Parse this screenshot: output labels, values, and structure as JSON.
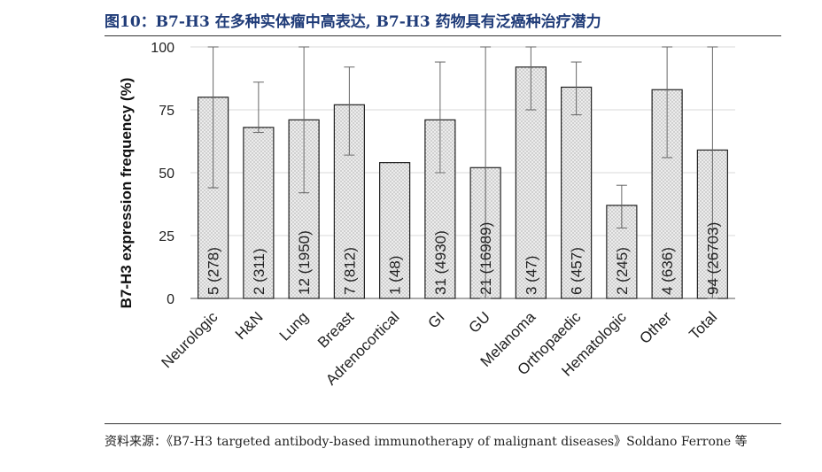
{
  "figure": {
    "title": "图10：B7-H3 在多种实体瘤中高表达, B7-H3 药物具有泛癌种治疗潜力",
    "source": "资料来源：《B7-H3 targeted antibody-based immunotherapy of malignant diseases》Soldano Ferrone 等"
  },
  "colors": {
    "bar_fill": "#ececec",
    "bar_stroke": "#222222",
    "grid": "#d9d9d9",
    "title": "#1f3b78"
  },
  "chart_data": {
    "type": "bar",
    "ylabel": "B7-H3 expression frequency (%)",
    "ylim": [
      0,
      100
    ],
    "yticks": [
      "0",
      "25",
      "50",
      "75",
      "100"
    ],
    "grid": true,
    "categories": [
      "Neurologic",
      "H&N",
      "Lung",
      "Breast",
      "Adrenocortical",
      "GI",
      "GU",
      "Melanoma",
      "Orthopaedic",
      "Hematologic",
      "Other",
      "Total"
    ],
    "values": [
      80,
      68,
      71,
      77,
      54,
      71,
      52,
      92,
      84,
      37,
      83,
      59
    ],
    "error_low": [
      44,
      66,
      42,
      57,
      54,
      50,
      0,
      75,
      73,
      28,
      56,
      0
    ],
    "error_high": [
      100,
      86,
      100,
      92,
      54,
      94,
      100,
      100,
      94,
      45,
      100,
      100
    ],
    "bar_labels": [
      "5 (278)",
      "2 (311)",
      "12 (1950)",
      "7 (812)",
      "1 (48)",
      "31 (4930)",
      "21 (16989)",
      "3 (47)",
      "6 (457)",
      "2 (245)",
      "4 (636)",
      "94 (26703)"
    ]
  }
}
